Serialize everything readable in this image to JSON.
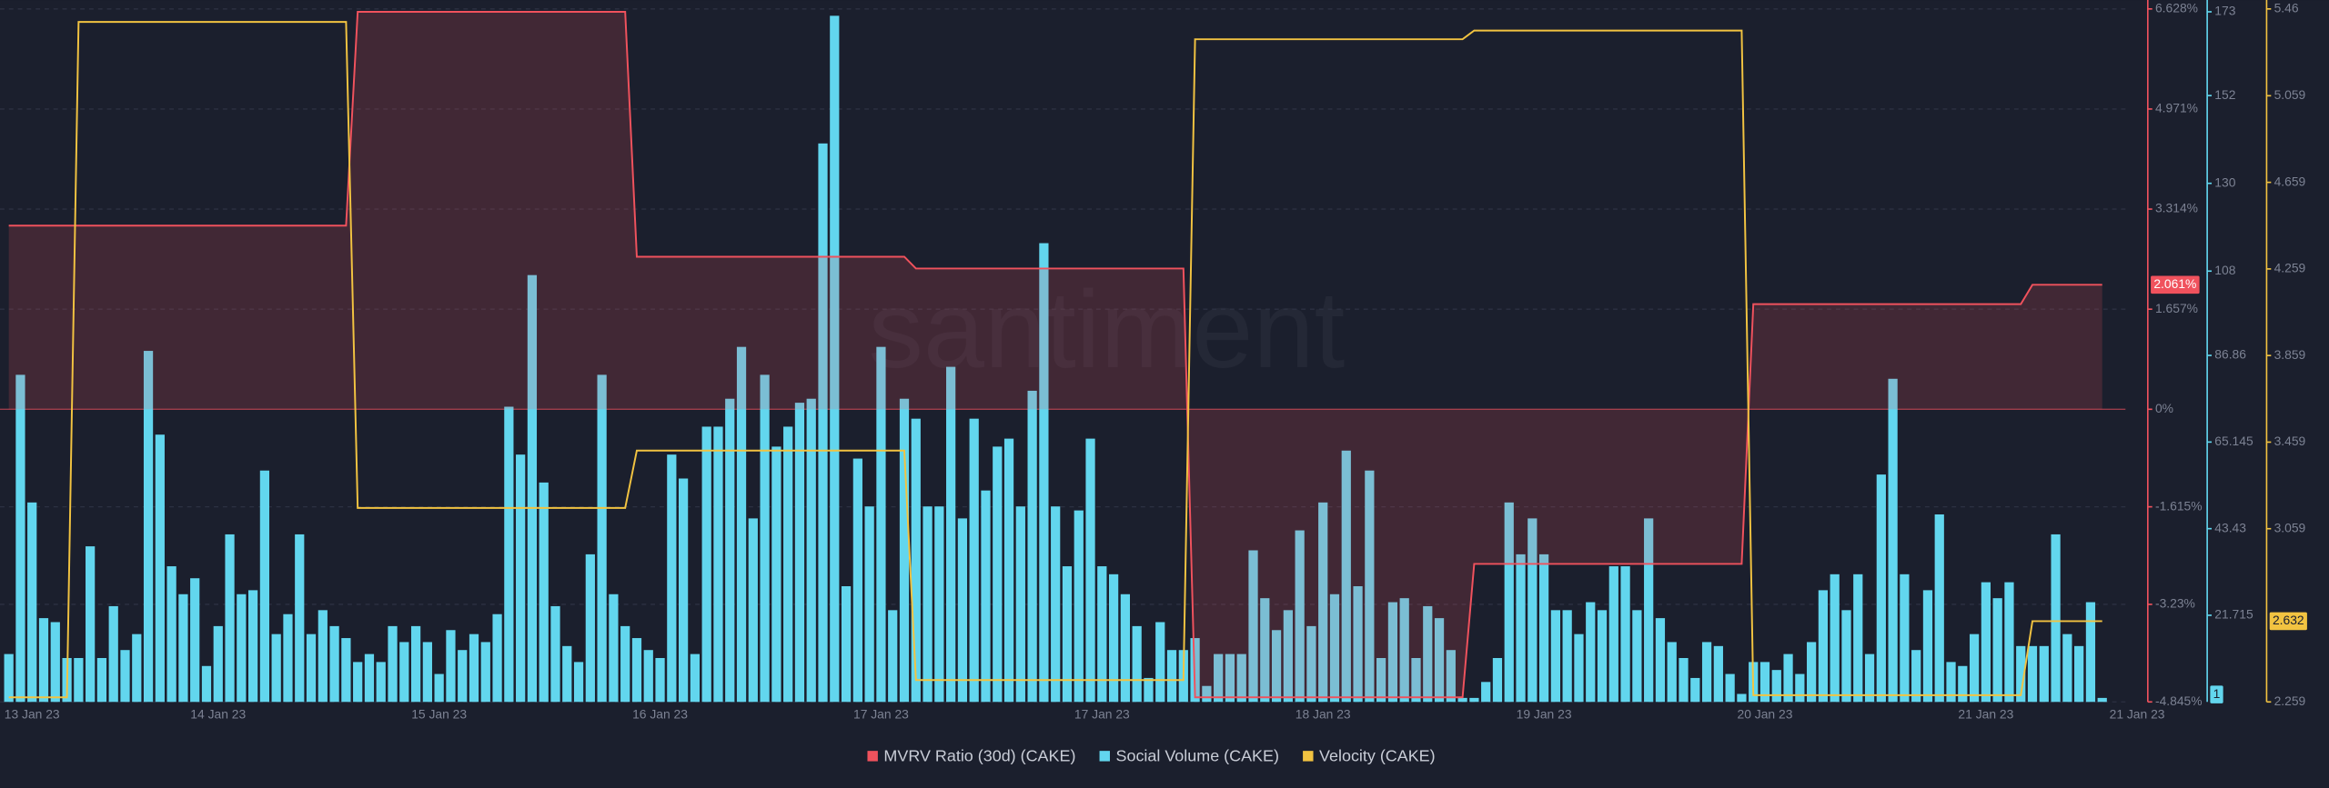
{
  "chart_data": {
    "type": "bar-line",
    "watermark": "santiment",
    "grid": true,
    "categories": [
      null,
      null,
      "13 Jan 23",
      null,
      null,
      null,
      null,
      null,
      null,
      null,
      null,
      null,
      null,
      null,
      null,
      null,
      null,
      null,
      "14 Jan 23",
      null,
      null,
      null,
      null,
      null,
      null,
      null,
      null,
      null,
      null,
      null,
      null,
      null,
      null,
      null,
      null,
      null,
      null,
      "15 Jan 23",
      null,
      null,
      null,
      null,
      null,
      null,
      null,
      null,
      null,
      null,
      null,
      null,
      null,
      null,
      null,
      null,
      null,
      null,
      "16 Jan 23",
      null,
      null,
      null,
      null,
      null,
      null,
      null,
      null,
      null,
      null,
      null,
      null,
      null,
      null,
      null,
      null,
      null,
      null,
      "17 Jan 23",
      null,
      null,
      null,
      null,
      null,
      null,
      null,
      null,
      null,
      null,
      null,
      null,
      null,
      null,
      null,
      null,
      null,
      null,
      "17 Jan 23",
      null,
      null,
      null,
      null,
      null,
      null,
      null,
      null,
      null,
      null,
      null,
      null,
      null,
      null,
      null,
      null,
      null,
      null,
      "18 Jan 23",
      null,
      null,
      null,
      null,
      null,
      null,
      null,
      null,
      null,
      null,
      null,
      null,
      null,
      null,
      null,
      null,
      null,
      null,
      "19 Jan 23",
      null,
      null,
      null,
      null,
      null,
      null,
      null,
      null,
      null,
      null,
      null,
      null,
      null,
      null,
      null,
      null,
      null,
      null,
      "20 Jan 23",
      null,
      null,
      null,
      null,
      null,
      null,
      null,
      null,
      null,
      null,
      null,
      null,
      null,
      null,
      null,
      null,
      null,
      null,
      "21 Jan 23",
      null,
      null,
      null,
      null,
      null,
      null,
      null,
      null,
      null,
      null,
      null,
      null,
      "21 Jan 23"
    ],
    "ylim": [
      -4.845,
      6.628
    ],
    "yticks": [
      {
        "value": -4.845,
        "label": "-4.845%"
      },
      {
        "value": -3.23,
        "label": "-3.23%"
      },
      {
        "value": -1.615,
        "label": "-1.615%"
      },
      {
        "value": 0,
        "label": "0%"
      },
      {
        "value": 1.657,
        "label": "1.657%"
      },
      {
        "value": 3.314,
        "label": "3.314%"
      },
      {
        "value": 4.971,
        "label": "4.971%"
      },
      {
        "value": 6.628,
        "label": "6.628%"
      }
    ],
    "y2lim": [
      0,
      173.72
    ],
    "y2ticks": [
      21.715,
      43.43,
      65.145,
      86.86,
      108,
      130,
      152,
      173
    ],
    "y3lim": [
      2.259,
      5.46
    ],
    "y3ticks": [
      2.259,
      3.059,
      3.459,
      3.859,
      4.259,
      4.659,
      5.059,
      5.46
    ],
    "series": [
      {
        "name": "MVRV Ratio (30d) (CAKE)",
        "type": "area",
        "axis": "y",
        "color": "#f0525d",
        "values": [
          3.04,
          3.04,
          3.04,
          3.04,
          3.04,
          3.04,
          3.04,
          3.04,
          3.04,
          3.04,
          3.04,
          3.04,
          3.04,
          3.04,
          3.04,
          3.04,
          3.04,
          3.04,
          3.04,
          3.04,
          3.04,
          3.04,
          3.04,
          3.04,
          3.04,
          3.04,
          3.04,
          3.04,
          3.04,
          3.04,
          6.58,
          6.58,
          6.58,
          6.58,
          6.58,
          6.58,
          6.58,
          6.58,
          6.58,
          6.58,
          6.58,
          6.58,
          6.58,
          6.58,
          6.58,
          6.58,
          6.58,
          6.58,
          6.58,
          6.58,
          6.58,
          6.58,
          6.58,
          6.58,
          2.525,
          2.525,
          2.525,
          2.525,
          2.525,
          2.525,
          2.525,
          2.525,
          2.525,
          2.525,
          2.525,
          2.525,
          2.525,
          2.525,
          2.525,
          2.525,
          2.525,
          2.525,
          2.525,
          2.525,
          2.525,
          2.525,
          2.525,
          2.525,
          2.33,
          2.33,
          2.33,
          2.33,
          2.33,
          2.33,
          2.33,
          2.33,
          2.33,
          2.33,
          2.33,
          2.33,
          2.33,
          2.33,
          2.33,
          2.33,
          2.33,
          2.33,
          2.33,
          2.33,
          2.33,
          2.33,
          2.33,
          2.33,
          -4.77,
          -4.77,
          -4.77,
          -4.77,
          -4.77,
          -4.77,
          -4.77,
          -4.77,
          -4.77,
          -4.77,
          -4.77,
          -4.77,
          -4.77,
          -4.77,
          -4.77,
          -4.77,
          -4.77,
          -4.77,
          -4.77,
          -4.77,
          -4.77,
          -4.77,
          -4.77,
          -4.77,
          -2.56,
          -2.56,
          -2.56,
          -2.56,
          -2.56,
          -2.56,
          -2.56,
          -2.56,
          -2.56,
          -2.56,
          -2.56,
          -2.56,
          -2.56,
          -2.56,
          -2.56,
          -2.56,
          -2.56,
          -2.56,
          -2.56,
          -2.56,
          -2.56,
          -2.56,
          -2.56,
          -2.56,
          1.74,
          1.74,
          1.74,
          1.74,
          1.74,
          1.74,
          1.74,
          1.74,
          1.74,
          1.74,
          1.74,
          1.74,
          1.74,
          1.74,
          1.74,
          1.74,
          1.74,
          1.74,
          1.74,
          1.74,
          1.74,
          1.74,
          1.74,
          1.74,
          2.061,
          2.061,
          2.061,
          2.061,
          2.061,
          2.061,
          2.061,
          null,
          null,
          null
        ],
        "value_labels": [
          null,
          null,
          null,
          null,
          null,
          null,
          null,
          null,
          null,
          null,
          null,
          null,
          null,
          null,
          null,
          null,
          null,
          null,
          null,
          null,
          null,
          null,
          null,
          null,
          null,
          null,
          null,
          null,
          null,
          null,
          null,
          null,
          null,
          null,
          null,
          null,
          null,
          null,
          null,
          null,
          null,
          null,
          null,
          null,
          null,
          null,
          null,
          null,
          null,
          null,
          null,
          null,
          null,
          null,
          null,
          null,
          null,
          null,
          null,
          null,
          null,
          null,
          null,
          null,
          null,
          null,
          null,
          null,
          null,
          null,
          null,
          null,
          null,
          null,
          null,
          null,
          null,
          null,
          null,
          null,
          null,
          null,
          null,
          null,
          null,
          null,
          null,
          null,
          null,
          null,
          null,
          null,
          null,
          null,
          null,
          null,
          null,
          null,
          null,
          null,
          null,
          null,
          null,
          null,
          null,
          null,
          null,
          null,
          null,
          null,
          null,
          null,
          null,
          null,
          null,
          null,
          null,
          null,
          null,
          null,
          null,
          null,
          null,
          null,
          null,
          null,
          null,
          null,
          null,
          null,
          null,
          null,
          null,
          null,
          null,
          null,
          null,
          null,
          null,
          null,
          null,
          null,
          null,
          null,
          null,
          null,
          null,
          null,
          null,
          null,
          null,
          null,
          null,
          null,
          null,
          null,
          null,
          null,
          null,
          null,
          null,
          null,
          null,
          null,
          null,
          null,
          null,
          null,
          null,
          null,
          null,
          null,
          null,
          null,
          null,
          null,
          null,
          null,
          null,
          null,
          "2.061%",
          null,
          null,
          null
        ]
      },
      {
        "name": "Social Volume (CAKE)",
        "type": "bar",
        "axis": "y2",
        "color": "#62d6ee",
        "values": [
          12,
          82,
          50,
          21,
          20,
          11,
          11,
          39,
          11,
          24,
          13,
          17,
          88,
          67,
          34,
          27,
          31,
          9,
          19,
          42,
          27,
          28,
          58,
          17,
          22,
          42,
          17,
          23,
          19,
          16,
          10,
          12,
          10,
          19,
          15,
          19,
          15,
          7,
          18,
          13,
          17,
          15,
          22,
          74,
          62,
          107,
          55,
          24,
          14,
          10,
          37,
          82,
          27,
          19,
          16,
          13,
          11,
          62,
          56,
          12,
          69,
          69,
          76,
          89,
          46,
          82,
          64,
          69,
          75,
          76,
          140,
          172,
          29,
          61,
          49,
          89,
          23,
          76,
          71,
          49,
          49,
          84,
          46,
          71,
          53,
          64,
          66,
          49,
          78,
          115,
          49,
          34,
          48,
          66,
          34,
          32,
          27,
          19,
          6,
          20,
          13,
          13,
          16,
          4,
          12,
          12,
          12,
          38,
          26,
          18,
          23,
          43,
          19,
          50,
          27,
          63,
          29,
          58,
          11,
          25,
          26,
          11,
          24,
          21,
          13,
          1,
          1,
          5,
          11,
          50,
          37,
          46,
          37,
          23,
          23,
          17,
          25,
          23,
          34,
          34,
          23,
          46,
          21,
          15,
          11,
          6,
          15,
          14,
          7,
          2,
          10,
          10,
          8,
          12,
          7,
          15,
          28,
          32,
          23,
          32,
          12,
          57,
          81,
          32,
          13,
          28,
          47,
          10,
          9,
          17,
          30,
          26,
          30,
          14,
          14,
          14,
          42,
          17,
          14,
          25,
          1,
          null,
          null,
          null
        ]
      },
      {
        "name": "Velocity (CAKE)",
        "type": "line",
        "axis": "y3",
        "color": "#f2c341",
        "values": [
          2.28,
          2.28,
          2.28,
          2.28,
          2.28,
          2.28,
          5.4,
          5.4,
          5.4,
          5.4,
          5.4,
          5.4,
          5.4,
          5.4,
          5.4,
          5.4,
          5.4,
          5.4,
          5.4,
          5.4,
          5.4,
          5.4,
          5.4,
          5.4,
          5.4,
          5.4,
          5.4,
          5.4,
          5.4,
          5.4,
          3.155,
          3.155,
          3.155,
          3.155,
          3.155,
          3.155,
          3.155,
          3.155,
          3.155,
          3.155,
          3.155,
          3.155,
          3.155,
          3.155,
          3.155,
          3.155,
          3.155,
          3.155,
          3.155,
          3.155,
          3.155,
          3.155,
          3.155,
          3.155,
          3.42,
          3.42,
          3.42,
          3.42,
          3.42,
          3.42,
          3.42,
          3.42,
          3.42,
          3.42,
          3.42,
          3.42,
          3.42,
          3.42,
          3.42,
          3.42,
          3.42,
          3.42,
          3.42,
          3.42,
          3.42,
          3.42,
          3.42,
          3.42,
          2.36,
          2.36,
          2.36,
          2.36,
          2.36,
          2.36,
          2.36,
          2.36,
          2.36,
          2.36,
          2.36,
          2.36,
          2.36,
          2.36,
          2.36,
          2.36,
          2.36,
          2.36,
          2.36,
          2.36,
          2.36,
          2.36,
          2.36,
          2.36,
          5.32,
          5.32,
          5.32,
          5.32,
          5.32,
          5.32,
          5.32,
          5.32,
          5.32,
          5.32,
          5.32,
          5.32,
          5.32,
          5.32,
          5.32,
          5.32,
          5.32,
          5.32,
          5.32,
          5.32,
          5.32,
          5.32,
          5.32,
          5.32,
          5.36,
          5.36,
          5.36,
          5.36,
          5.36,
          5.36,
          5.36,
          5.36,
          5.36,
          5.36,
          5.36,
          5.36,
          5.36,
          5.36,
          5.36,
          5.36,
          5.36,
          5.36,
          5.36,
          5.36,
          5.36,
          5.36,
          5.36,
          5.36,
          2.29,
          2.29,
          2.29,
          2.29,
          2.29,
          2.29,
          2.29,
          2.29,
          2.29,
          2.29,
          2.29,
          2.29,
          2.29,
          2.29,
          2.29,
          2.29,
          2.29,
          2.29,
          2.29,
          2.29,
          2.29,
          2.29,
          2.29,
          2.29,
          2.632,
          2.632,
          2.632,
          2.632,
          2.632,
          2.632,
          2.632,
          null,
          null,
          null
        ]
      }
    ]
  }
}
